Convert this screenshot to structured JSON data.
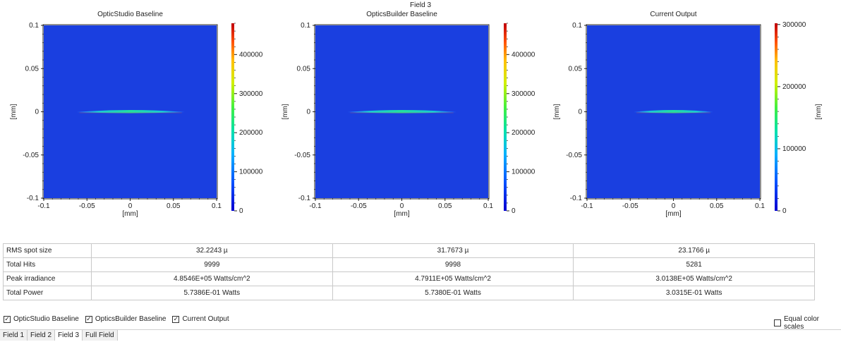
{
  "window_title": "Field 3",
  "chart_data": [
    {
      "type": "heatmap",
      "title": "OpticStudio Baseline",
      "xlabel": "[mm]",
      "ylabel": "[mm]",
      "xlim": [
        -0.1,
        0.1
      ],
      "ylim": [
        -0.1,
        0.1
      ],
      "x_ticks": [
        "-0.1",
        "-0.05",
        "0",
        "0.05",
        "0.1"
      ],
      "y_ticks": [
        "0.1",
        "0.05",
        "0",
        "-0.05",
        "-0.1"
      ],
      "spot": {
        "x_min": -0.062,
        "x_max": 0.063,
        "y_max": 0.002,
        "y_min": -0.002
      },
      "colorbar": {
        "min": 0,
        "max": 480000,
        "ticks": [
          "0",
          "100000",
          "200000",
          "300000",
          "400000"
        ],
        "label": ""
      },
      "background_color": "#1a3fe0"
    },
    {
      "type": "heatmap",
      "title": "OpticsBuilder Baseline",
      "xlabel": "[mm]",
      "ylabel": "[mm]",
      "xlim": [
        -0.1,
        0.1
      ],
      "ylim": [
        -0.1,
        0.1
      ],
      "x_ticks": [
        "-0.1",
        "-0.05",
        "0",
        "0.05",
        "0.1"
      ],
      "y_ticks": [
        "0.1",
        "0.05",
        "0",
        "-0.05",
        "-0.1"
      ],
      "spot": {
        "x_min": -0.063,
        "x_max": 0.063,
        "y_max": 0.002,
        "y_min": -0.002
      },
      "colorbar": {
        "min": 0,
        "max": 480000,
        "ticks": [
          "0",
          "100000",
          "200000",
          "300000",
          "400000"
        ],
        "label": ""
      },
      "background_color": "#1a3fe0"
    },
    {
      "type": "heatmap",
      "title": "Current Output",
      "xlabel": "[mm]",
      "ylabel": "[mm]",
      "xlim": [
        -0.1,
        0.1
      ],
      "ylim": [
        -0.1,
        0.1
      ],
      "x_ticks": [
        "-0.1",
        "-0.05",
        "0",
        "0.05",
        "0.1"
      ],
      "y_ticks": [
        "0.1",
        "0.05",
        "0",
        "-0.05",
        "-0.1"
      ],
      "spot": {
        "x_min": -0.046,
        "x_max": 0.046,
        "y_max": 0.002,
        "y_min": -0.002
      },
      "colorbar": {
        "min": 0,
        "max": 302000,
        "ticks": [
          "0",
          "100000",
          "200000",
          "300000"
        ],
        "label": "[mm]"
      },
      "background_color": "#1a3fe0"
    }
  ],
  "stats_table": {
    "rows": [
      {
        "label": "RMS spot size",
        "values": [
          "32.2243 µ",
          "31.7673 µ",
          "23.1766 µ"
        ]
      },
      {
        "label": "Total Hits",
        "values": [
          "9999",
          "9998",
          "5281"
        ]
      },
      {
        "label": "Peak irradiance",
        "values": [
          "4.8546E+05 Watts/cm^2",
          "4.7911E+05 Watts/cm^2",
          "3.0138E+05 Watts/cm^2"
        ]
      },
      {
        "label": "Total Power",
        "values": [
          "5.7386E-01 Watts",
          "5.7380E-01 Watts",
          "3.0315E-01 Watts"
        ]
      }
    ]
  },
  "checkboxes": [
    {
      "label": "OpticStudio Baseline",
      "checked": true
    },
    {
      "label": "OpticsBuilder Baseline",
      "checked": true
    },
    {
      "label": "Current Output",
      "checked": true
    }
  ],
  "equal_color_scales": {
    "label": "Equal color scales",
    "checked": false
  },
  "tabs": [
    {
      "label": "Field 1",
      "active": false
    },
    {
      "label": "Field 2",
      "active": false
    },
    {
      "label": "Field 3",
      "active": true
    },
    {
      "label": "Full Field",
      "active": false
    }
  ]
}
